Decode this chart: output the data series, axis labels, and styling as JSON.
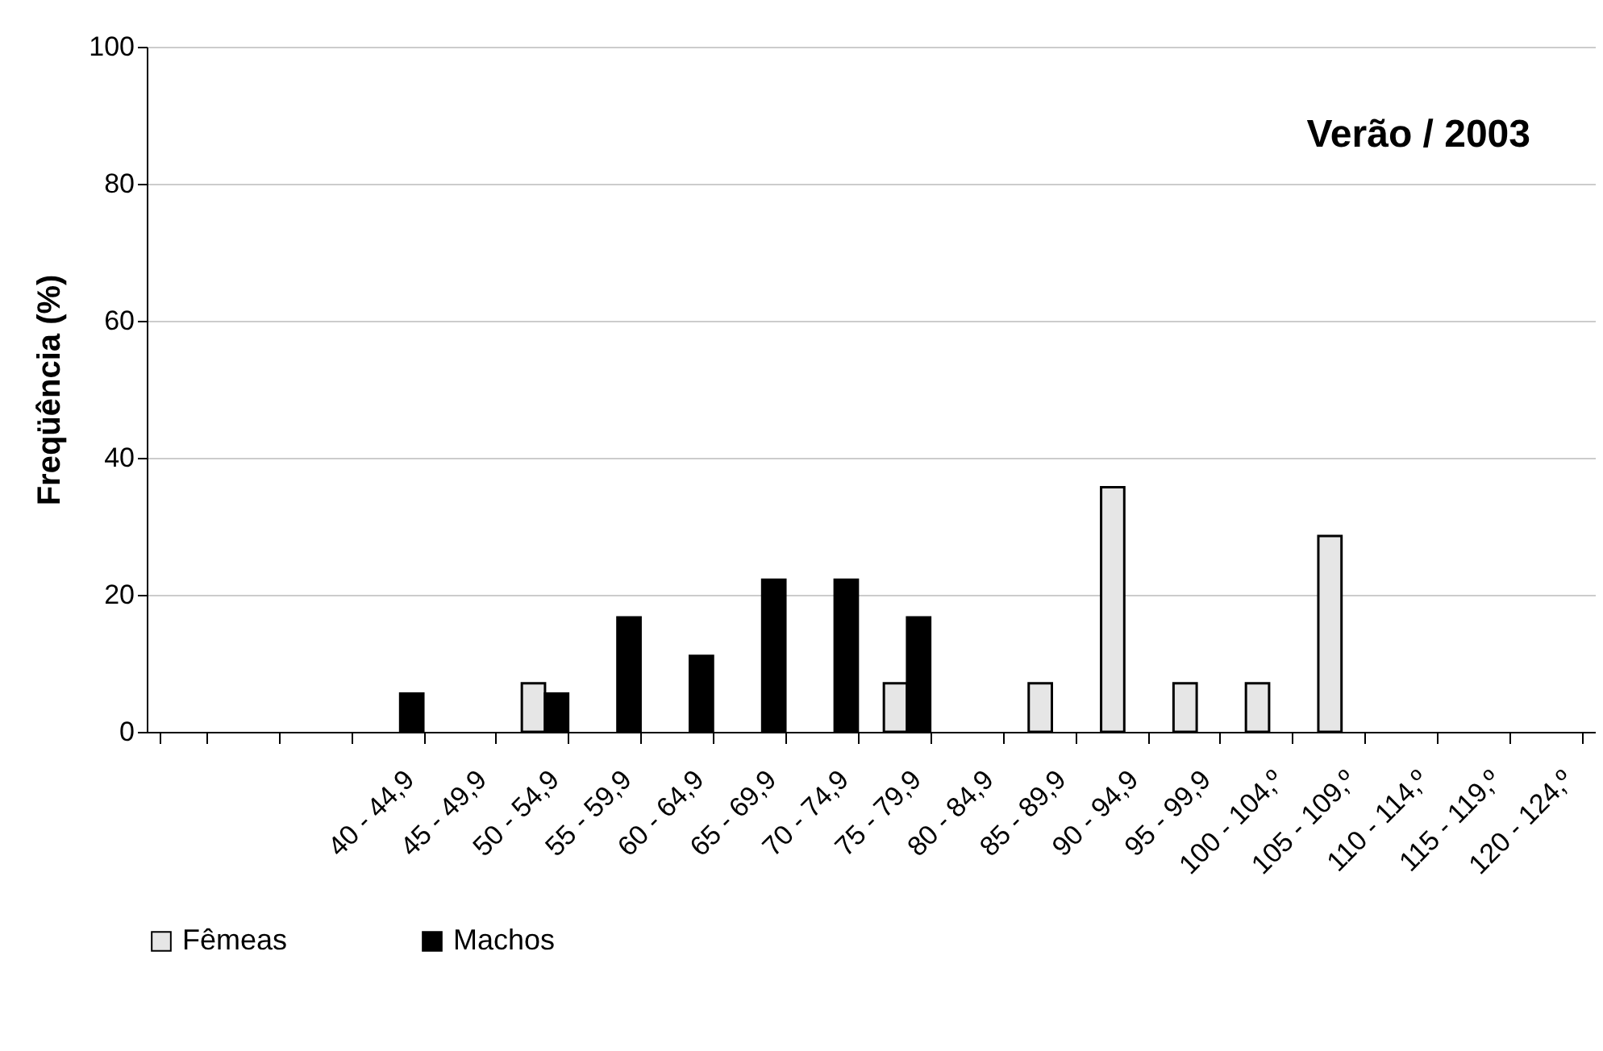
{
  "chart_data": {
    "type": "bar",
    "title": "Verão / 2003",
    "ylabel": "Freqüência (%)",
    "categories": [
      null,
      null,
      null,
      "40 - 44,9",
      "45 - 49,9",
      "50 - 54,9",
      "55 - 59,9",
      "60 - 64,9",
      "65 - 69,9",
      "70 - 74,9",
      "75 - 79,9",
      "80 - 84,9",
      "85 - 89,9",
      "90 - 94,9",
      "95 - 99,9",
      "100 - 104,º",
      "105 - 109,º",
      "110 - 114,º",
      "115 - 119,º",
      "120 - 124,º"
    ],
    "series": [
      {
        "name": "Fêmeas",
        "color": "#e6e6e6",
        "values": [
          null,
          null,
          null,
          null,
          null,
          7.1,
          null,
          null,
          null,
          null,
          7.1,
          null,
          7.1,
          35.7,
          7.1,
          7.1,
          28.6,
          null,
          null,
          null
        ]
      },
      {
        "name": "Machos",
        "color": "#000000",
        "values": [
          null,
          null,
          null,
          5.6,
          null,
          5.6,
          16.7,
          11.1,
          22.2,
          22.2,
          16.7,
          null,
          null,
          null,
          null,
          null,
          null,
          null,
          null,
          null
        ]
      }
    ],
    "ylim": [
      0,
      100
    ],
    "yticks": [
      0,
      20,
      40,
      60,
      80,
      100
    ],
    "grid": "y",
    "legend": "bottom"
  }
}
